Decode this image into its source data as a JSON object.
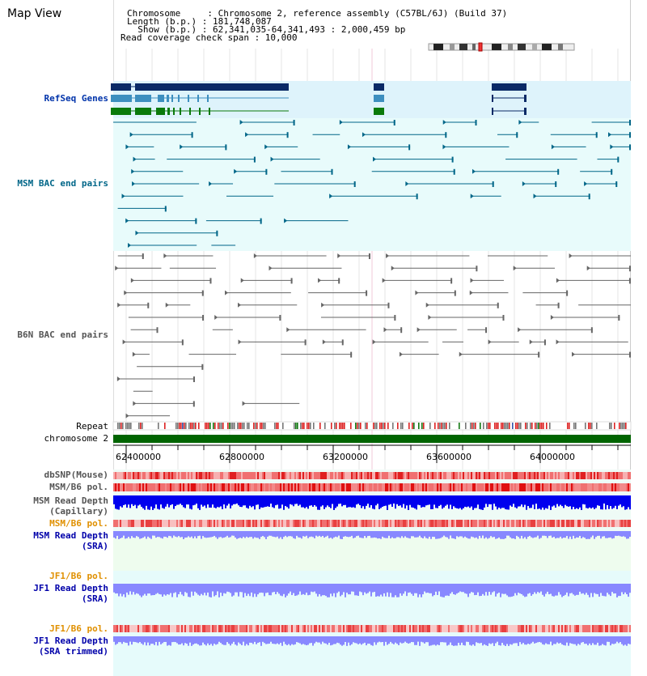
{
  "title": "Map View",
  "info": {
    "line1": "Chromosome     : Chromosome 2, reference assembly (C57BL/6J) (Build 37)",
    "line2": "Length (b.p.) : 181,748,087",
    "line3": "  Show (b.p.) : 62,341,035-64,341,493 : 2,000,459 bp",
    "line4": "Read coverage check span : 10,000"
  },
  "tracks": {
    "refseq": "RefSeq Genes",
    "msm_bac": "MSM BAC end pairs",
    "b6n_bac": "B6N BAC end pairs",
    "repeat": "Repeat",
    "chromosome": "chromosome 2",
    "dbsnp": "dbSNP(Mouse)",
    "msm_b6_pol": "MSM/B6 pol.",
    "msm_depth_cap_1": "MSM Read Depth",
    "msm_depth_cap_2": "(Capillary)",
    "msm_b6_pol2": "MSM/B6 pol.",
    "msm_depth_sra_1": "MSM Read Depth",
    "msm_depth_sra_2": "(SRA)",
    "jf1_b6_pol": "JF1/B6 pol.",
    "jf1_depth_sra_1": "JF1 Read Depth",
    "jf1_depth_sra_2": "(SRA)",
    "jf1_b6_pol2": "JF1/B6 pol.",
    "jf1_depth_trim_1": "JF1 Read Depth",
    "jf1_depth_trim_2": "(SRA trimmed)"
  },
  "ticks": [
    "62400000",
    "62800000",
    "63200000",
    "63600000",
    "64000000"
  ],
  "colors": {
    "refseq_dark": "#0a2a66",
    "refseq_mid": "#3d8fbf",
    "refseq_green": "#0a7a0a",
    "msm_pairs": "#006688",
    "b6n_pairs": "#666666",
    "chromosome": "#006400",
    "snp": "#e83a3a",
    "depth_cap": "#0000ee",
    "depth_sra": "#8888ff"
  }
}
